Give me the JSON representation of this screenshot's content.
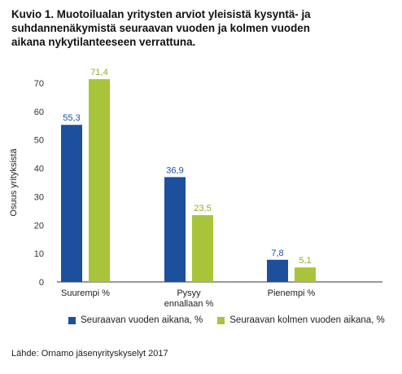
{
  "title_lines": [
    "Kuvio 1. Muotoilualan yritysten arviot yleisistä kysyntä- ja",
    "suhdannenäkymistä seuraavan vuoden ja kolmen vuoden",
    "aikana nykytilanteeseen verrattuna."
  ],
  "source": "Lähde: Ornamo jäsenyrityskyselyt 2017",
  "colors": {
    "series_1": "#1c4f9c",
    "series_2": "#a8c43a",
    "label_1": "#1c4f9c",
    "label_2": "#8fae2a",
    "axis": "#333333"
  },
  "chart_data": {
    "type": "bar",
    "categories": [
      [
        "Suurempi %"
      ],
      [
        "Pysyy",
        "ennallaan %"
      ],
      [
        "Pienempi %"
      ]
    ],
    "series": [
      {
        "name": "Seuraavan vuoden aikana, %",
        "values": [
          55.3,
          36.9,
          7.8
        ],
        "labels": [
          "55,3",
          "36,9",
          "7,8"
        ]
      },
      {
        "name": "Seuraavan kolmen vuoden aikana, %",
        "values": [
          71.4,
          23.5,
          5.1
        ],
        "labels": [
          "71,4",
          "23,5",
          "5,1"
        ]
      }
    ],
    "ylabel": "Osuus yrityksistä",
    "ylim": [
      0,
      70
    ],
    "yticks": [
      "0",
      "10",
      "20",
      "30",
      "40",
      "50",
      "60",
      "70"
    ],
    "grid": false,
    "legend_position": "bottom"
  }
}
